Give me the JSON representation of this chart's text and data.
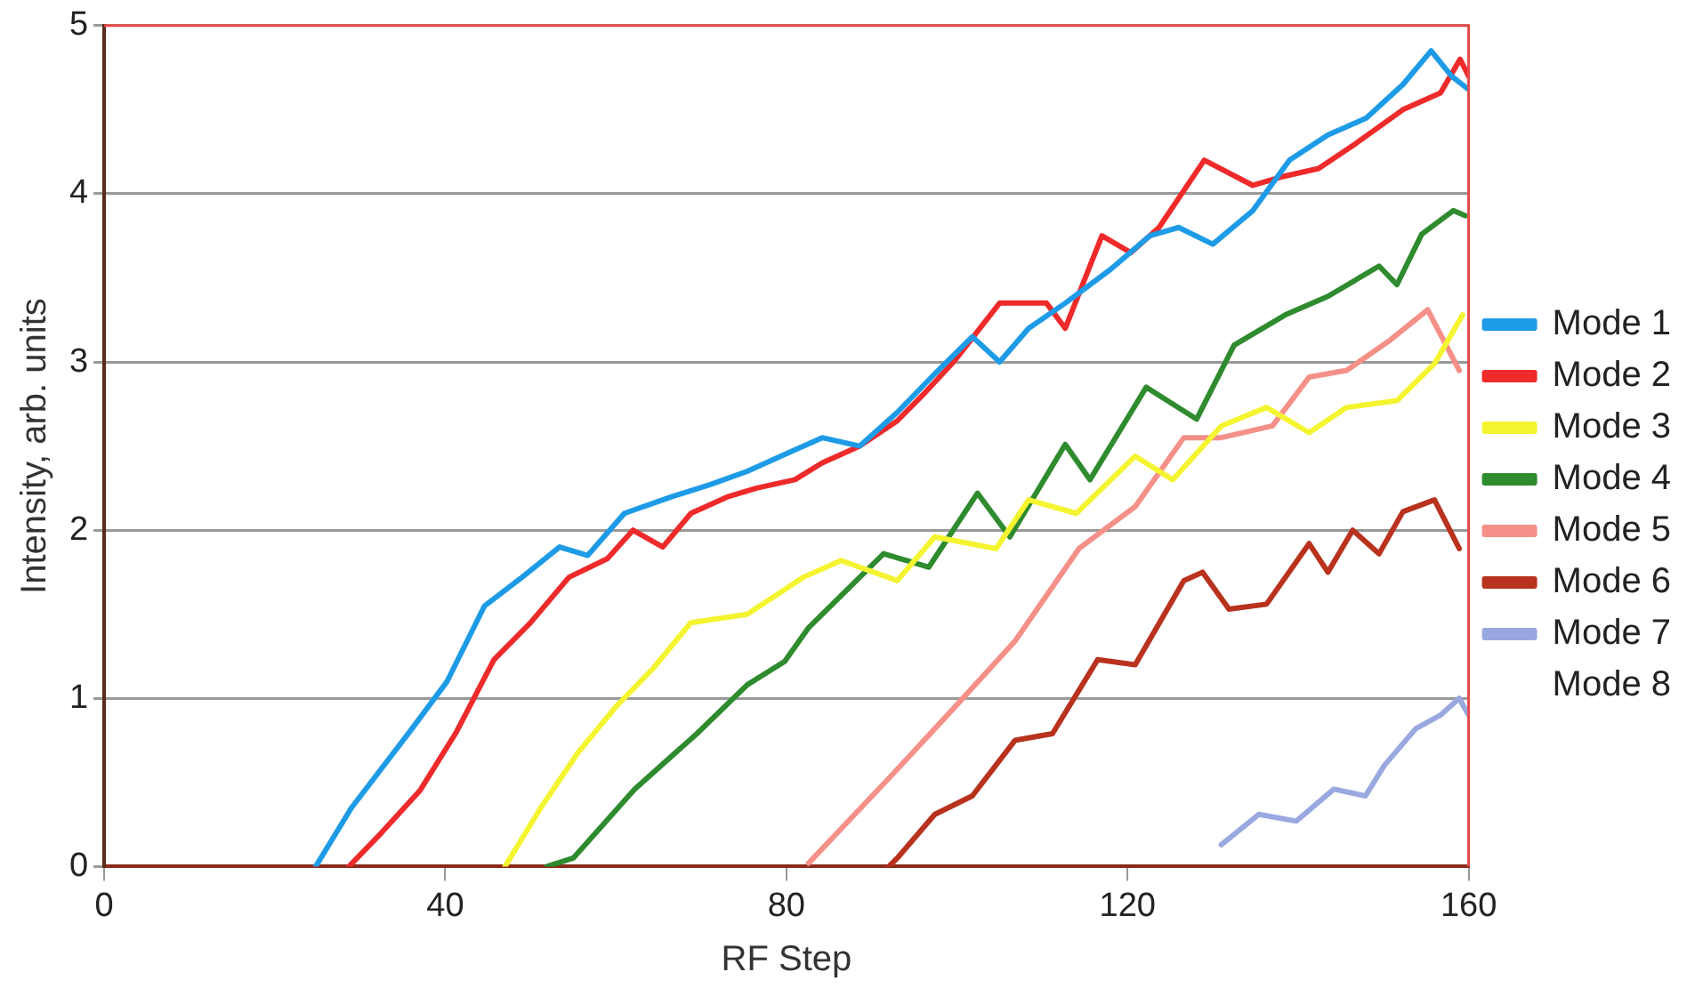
{
  "chart_data": {
    "type": "line",
    "xlabel": "RF Step",
    "ylabel": "Intensity, arb. units",
    "xlim": [
      0,
      160
    ],
    "ylim": [
      0,
      5
    ],
    "xticks": [
      0,
      40,
      80,
      120,
      160
    ],
    "yticks": [
      0,
      1,
      2,
      3,
      4,
      5
    ],
    "grid": "y",
    "legend": "right",
    "marker": "none",
    "line_style": "solid",
    "series": [
      {
        "name": "Mode 1",
        "color": "#1e9be6",
        "x": [
          24.8,
          29,
          35.8,
          40.2,
          44.6,
          49,
          53.4,
          56.7,
          61,
          66.6,
          71,
          75.4,
          79.8,
          84.2,
          88.6,
          93,
          97.4,
          101.8,
          105,
          108.4,
          112.7,
          118,
          122.6,
          126,
          130,
          134.7,
          139,
          143.5,
          148,
          152.3,
          155.6,
          158,
          160
        ],
        "values": [
          0,
          0.35,
          0.8,
          1.1,
          1.55,
          1.72,
          1.9,
          1.85,
          2.1,
          2.2,
          2.27,
          2.35,
          2.45,
          2.55,
          2.5,
          2.7,
          2.93,
          3.15,
          3,
          3.2,
          3.35,
          3.55,
          3.75,
          3.8,
          3.7,
          3.9,
          4.2,
          4.35,
          4.45,
          4.65,
          4.85,
          4.7,
          4.62
        ]
      },
      {
        "name": "Mode 2",
        "color": "#ee2a2a",
        "x": [
          28.7,
          32.5,
          37,
          41.3,
          45.7,
          50,
          54.5,
          59,
          62,
          65.5,
          68.8,
          73.2,
          76.5,
          81,
          84.2,
          88.6,
          93,
          96.3,
          99.6,
          105,
          110.5,
          112.7,
          117,
          120.4,
          123.7,
          129,
          134.7,
          138,
          142.4,
          146.8,
          152.3,
          156.7,
          159,
          160
        ],
        "values": [
          0,
          0.2,
          0.45,
          0.8,
          1.23,
          1.45,
          1.72,
          1.83,
          2,
          1.9,
          2.1,
          2.2,
          2.25,
          2.3,
          2.4,
          2.5,
          2.65,
          2.82,
          3,
          3.35,
          3.35,
          3.2,
          3.75,
          3.65,
          3.8,
          4.2,
          4.05,
          4.1,
          4.15,
          4.3,
          4.5,
          4.6,
          4.8,
          4.7
        ]
      },
      {
        "name": "Mode 3",
        "color": "#f4f430",
        "x": [
          47,
          51.2,
          55.6,
          60,
          64.4,
          68.8,
          75.4,
          82,
          86.4,
          93,
          97.4,
          104.6,
          108.4,
          114,
          120.9,
          125.3,
          131,
          136.3,
          141.3,
          145.7,
          151.6,
          156,
          159.3
        ],
        "values": [
          0,
          0.35,
          0.68,
          0.95,
          1.18,
          1.45,
          1.5,
          1.72,
          1.82,
          1.7,
          1.96,
          1.89,
          2.18,
          2.1,
          2.44,
          2.3,
          2.62,
          2.73,
          2.58,
          2.73,
          2.77,
          2.99,
          3.28
        ]
      },
      {
        "name": "Mode 4",
        "color": "#2e8b2e",
        "x": [
          51.9,
          55,
          62.2,
          69.5,
          75.4,
          79.8,
          82.6,
          91.4,
          96.7,
          102.4,
          106.2,
          112.7,
          115.6,
          122.2,
          128.1,
          132.5,
          138.5,
          143.5,
          149.5,
          151.6,
          154.5,
          158.2,
          159.6
        ],
        "values": [
          0,
          0.05,
          0.46,
          0.79,
          1.08,
          1.22,
          1.42,
          1.86,
          1.78,
          2.22,
          1.96,
          2.51,
          2.3,
          2.85,
          2.66,
          3.1,
          3.28,
          3.39,
          3.57,
          3.46,
          3.76,
          3.9,
          3.87
        ]
      },
      {
        "name": "Mode 5",
        "color": "#f59088",
        "x": [
          82.6,
          92.3,
          99.6,
          106.8,
          114.3,
          120.9,
          126.6,
          131,
          137,
          141.3,
          145.7,
          150.8,
          155.2,
          158.9
        ],
        "values": [
          0.02,
          0.54,
          0.94,
          1.34,
          1.89,
          2.14,
          2.55,
          2.55,
          2.62,
          2.91,
          2.95,
          3.13,
          3.31,
          2.95
        ]
      },
      {
        "name": "Mode 6",
        "color": "#b8321e",
        "x": [
          92,
          93,
          97.4,
          101.8,
          106.8,
          111.2,
          116.5,
          120.9,
          126.6,
          128.8,
          131.9,
          136.3,
          141.3,
          143.5,
          146.4,
          149.5,
          152.3,
          156,
          158.9
        ],
        "values": [
          0,
          0.05,
          0.31,
          0.42,
          0.75,
          0.79,
          1.23,
          1.2,
          1.7,
          1.75,
          1.53,
          1.56,
          1.92,
          1.75,
          2,
          1.86,
          2.11,
          2.18,
          1.89
        ]
      },
      {
        "name": "Mode 7",
        "color": "#9aa8e0",
        "x": [
          131,
          135.4,
          139.8,
          144.2,
          147.9,
          150.1,
          153.8,
          156.7,
          158.9,
          160
        ],
        "values": [
          0.13,
          0.31,
          0.27,
          0.46,
          0.42,
          0.6,
          0.82,
          0.9,
          1,
          0.9
        ]
      },
      {
        "name": "Mode 8"
      }
    ]
  }
}
